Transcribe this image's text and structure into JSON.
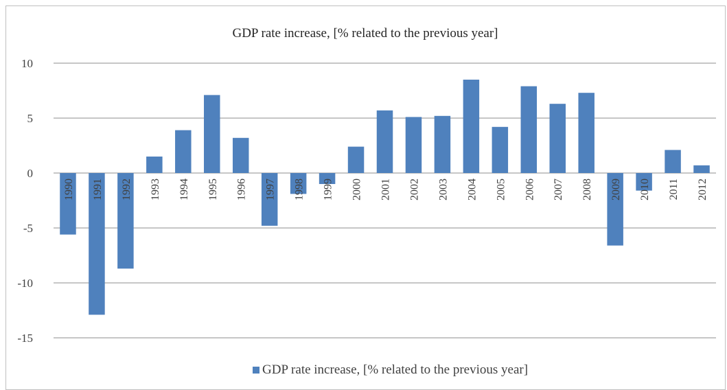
{
  "chart_data": {
    "type": "bar",
    "title": "GDP rate increase, [% related to the previous year]",
    "categories": [
      "1990",
      "1991",
      "1992",
      "1993",
      "1994",
      "1995",
      "1996",
      "1997",
      "1998",
      "1999",
      "2000",
      "2001",
      "2002",
      "2003",
      "2004",
      "2005",
      "2006",
      "2007",
      "2008",
      "2009",
      "2010",
      "2011",
      "2012"
    ],
    "series": [
      {
        "name": "GDP rate increase, [% related to the previous year]",
        "values": [
          -5.6,
          -12.9,
          -8.7,
          1.5,
          3.9,
          7.1,
          3.2,
          -4.8,
          -1.9,
          -1.0,
          2.4,
          5.7,
          5.1,
          5.2,
          8.5,
          4.2,
          7.9,
          6.3,
          7.3,
          -6.6,
          -1.6,
          2.1,
          0.7
        ]
      }
    ],
    "yticks": [
      "10",
      "5",
      "0",
      "-5",
      "-10",
      "-15"
    ],
    "ylim": [
      -15,
      10
    ],
    "xlabel": "",
    "ylabel": "",
    "grid": true,
    "legend": "bottom",
    "bar_color": "#4f81bd"
  }
}
